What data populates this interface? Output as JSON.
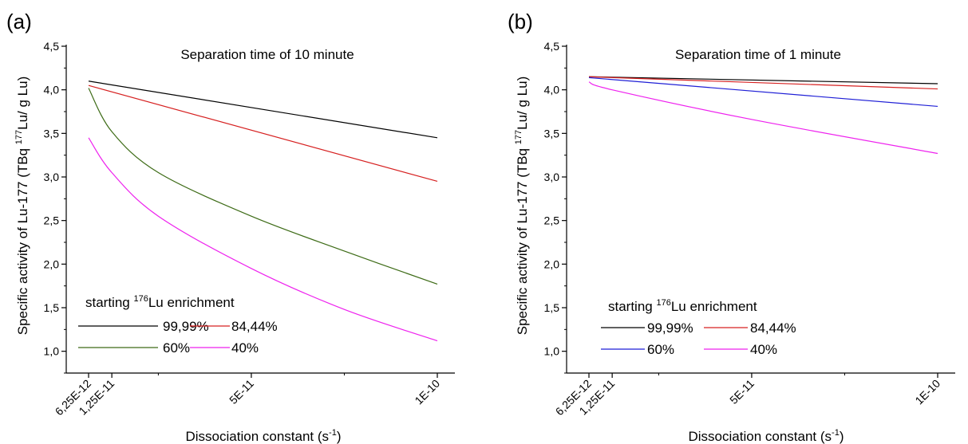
{
  "chart_data": [
    {
      "type": "line",
      "panel_label": "(a)",
      "title": "Separation time of 10 minute",
      "xlabel": "Dissociation constant (s",
      "xlabel_sup": "-1",
      "xlabel_end": ")",
      "ylabel_pre": "Specific activity of Lu-177 (TBq ",
      "ylabel_sup": "177",
      "ylabel_post": "Lu/ g Lu)",
      "xlim": [
        6.25e-12,
        1e-10
      ],
      "ylim": [
        0.75,
        4.5
      ],
      "x_ticks": [
        {
          "value": 6.25e-12,
          "label": "6,25E-12"
        },
        {
          "value": 1.25e-11,
          "label": "1,25E-11"
        },
        {
          "value": 5e-11,
          "label": "5E-11"
        },
        {
          "value": 1e-10,
          "label": "1E-10"
        }
      ],
      "x_minor_ticks": [
        2.5e-11,
        7.5e-11
      ],
      "y_ticks": [
        {
          "value": 1.0,
          "label": "1,0"
        },
        {
          "value": 1.5,
          "label": "1,5"
        },
        {
          "value": 2.0,
          "label": "2,0"
        },
        {
          "value": 2.5,
          "label": "2,5"
        },
        {
          "value": 3.0,
          "label": "3,0"
        },
        {
          "value": 3.5,
          "label": "3,5"
        },
        {
          "value": 4.0,
          "label": "4,0"
        },
        {
          "value": 4.5,
          "label": "4,5"
        }
      ],
      "legend_title_pre": "starting ",
      "legend_title_sup": "176",
      "legend_title_post": "Lu enrichment",
      "legend_position": "bottom-left",
      "series": [
        {
          "name": "99,99%",
          "color": "#000000",
          "x": [
            6.25e-12,
            1e-10
          ],
          "y": [
            4.1,
            3.45
          ]
        },
        {
          "name": "84,44%",
          "color": "#d62020",
          "x": [
            6.25e-12,
            1e-10
          ],
          "y": [
            4.05,
            2.95
          ]
        },
        {
          "name": "60%",
          "color": "#3d6b16",
          "x": [
            6.25e-12,
            1.25e-11,
            2.5e-11,
            5e-11,
            7.5e-11,
            1e-10
          ],
          "y": [
            4.02,
            3.52,
            3.05,
            2.55,
            2.15,
            1.77
          ]
        },
        {
          "name": "40%",
          "color": "#ee22ee",
          "x": [
            6.25e-12,
            1.25e-11,
            2.5e-11,
            5e-11,
            7.5e-11,
            1e-10
          ],
          "y": [
            3.45,
            3.05,
            2.55,
            1.95,
            1.48,
            1.12
          ]
        }
      ]
    },
    {
      "type": "line",
      "panel_label": "(b)",
      "title": "Separation time of 1 minute",
      "xlabel": "Dissociation constant (s",
      "xlabel_sup": "-1",
      "xlabel_end": ")",
      "ylabel_pre": "Specific activity of Lu-177 (TBq ",
      "ylabel_sup": "177",
      "ylabel_post": "Lu/ g Lu)",
      "xlim": [
        6.25e-12,
        1e-10
      ],
      "ylim": [
        0.75,
        4.5
      ],
      "x_ticks": [
        {
          "value": 6.25e-12,
          "label": "6,25E-12"
        },
        {
          "value": 1.25e-11,
          "label": "1,25E-11"
        },
        {
          "value": 5e-11,
          "label": "5E-11"
        },
        {
          "value": 1e-10,
          "label": "1E-10"
        }
      ],
      "x_minor_ticks": [
        2.5e-11,
        7.5e-11
      ],
      "y_ticks": [
        {
          "value": 1.0,
          "label": "1,0"
        },
        {
          "value": 1.5,
          "label": "1,5"
        },
        {
          "value": 2.0,
          "label": "2,0"
        },
        {
          "value": 2.5,
          "label": "2,5"
        },
        {
          "value": 3.0,
          "label": "3,0"
        },
        {
          "value": 3.5,
          "label": "3,5"
        },
        {
          "value": 4.0,
          "label": "4,0"
        },
        {
          "value": 4.5,
          "label": "4,5"
        }
      ],
      "legend_title_pre": "starting ",
      "legend_title_sup": "176",
      "legend_title_post": "Lu enrichment",
      "legend_position": "bottom-left",
      "series": [
        {
          "name": "99,99%",
          "color": "#000000",
          "x": [
            6.25e-12,
            1e-10
          ],
          "y": [
            4.15,
            4.07
          ]
        },
        {
          "name": "84,44%",
          "color": "#d62020",
          "x": [
            6.25e-12,
            1e-10
          ],
          "y": [
            4.15,
            4.01
          ]
        },
        {
          "name": "60%",
          "color": "#1f1fd6",
          "x": [
            6.25e-12,
            1e-10
          ],
          "y": [
            4.14,
            3.81
          ]
        },
        {
          "name": "40%",
          "color": "#ee22ee",
          "x": [
            6.25e-12,
            1.25e-11,
            5e-11,
            1e-10
          ],
          "y": [
            4.09,
            4.0,
            3.66,
            3.27
          ]
        }
      ]
    }
  ]
}
